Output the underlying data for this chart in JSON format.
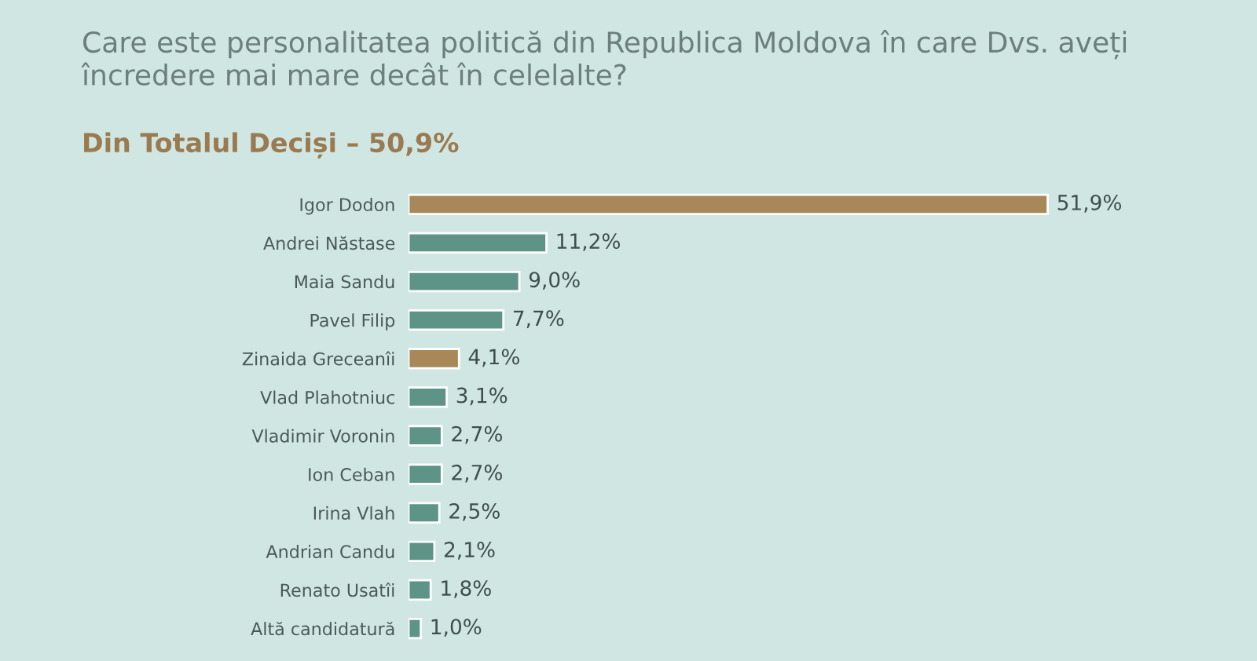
{
  "chart_data": {
    "type": "bar",
    "orientation": "horizontal",
    "title": "Care este personalitatea politică din Republica Moldova în care Dvs. aveți încredere mai mare decât în celelalte?",
    "subtitle": "Din Totalul Deciși – 50,9%",
    "categories": [
      "Igor Dodon",
      "Andrei Năstase",
      "Maia Sandu",
      "Pavel Filip",
      "Zinaida Greceanîi",
      "Vlad Plahotniuc",
      "Vladimir Voronin",
      "Ion Ceban",
      "Irina Vlah",
      "Andrian Candu",
      "Renato Usatîi",
      "Altă candidatură"
    ],
    "values": [
      51.9,
      11.2,
      9.0,
      7.7,
      4.1,
      3.1,
      2.7,
      2.7,
      2.5,
      2.1,
      1.8,
      1.0
    ],
    "value_labels": [
      "51,9%",
      "11,2%",
      "9,0%",
      "7,7%",
      "4,1%",
      "3,1%",
      "2,7%",
      "2,7%",
      "2,5%",
      "2,1%",
      "1,8%",
      "1,0%"
    ],
    "colors": [
      "#a88858",
      "#5e9488",
      "#5e9488",
      "#5e9488",
      "#a88858",
      "#5e9488",
      "#5e9488",
      "#5e9488",
      "#5e9488",
      "#5e9488",
      "#5e9488",
      "#5e9488"
    ],
    "grid": false,
    "legend": false
  }
}
